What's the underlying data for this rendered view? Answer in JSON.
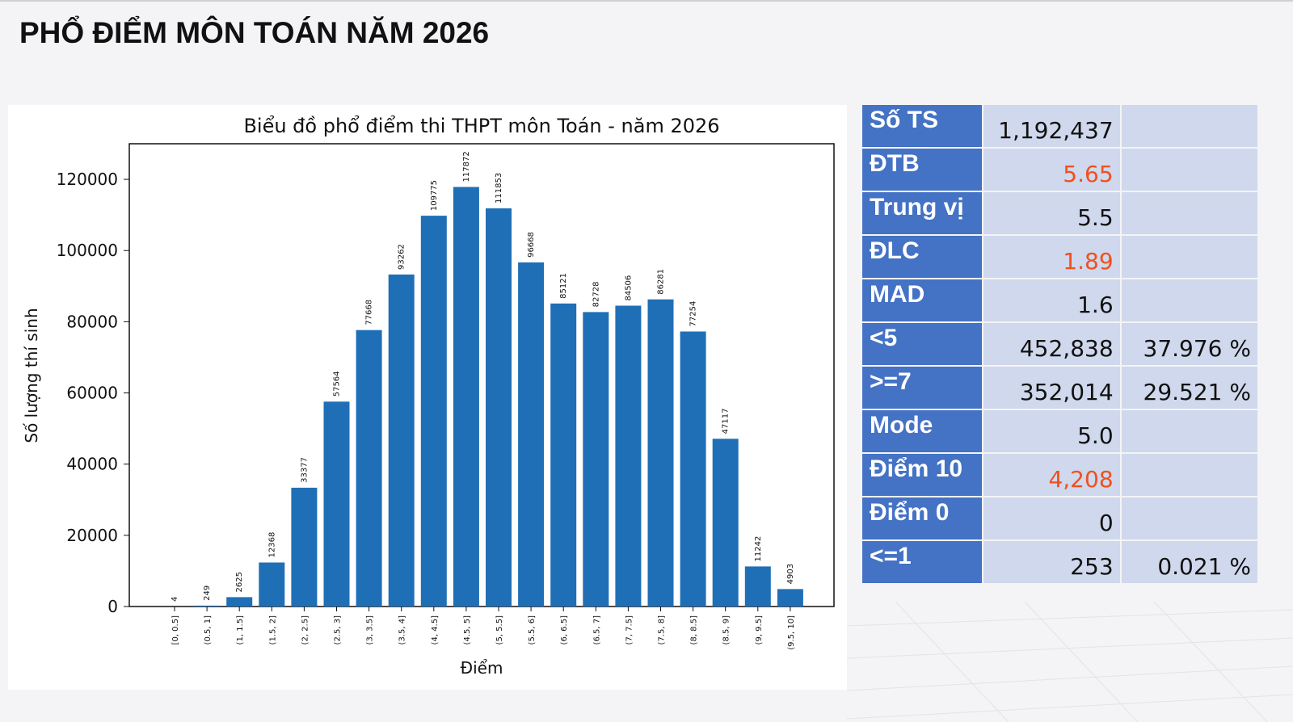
{
  "page": {
    "title": "PHỔ ĐIỂM MÔN TOÁN NĂM 2026"
  },
  "colors": {
    "bar": "#1f6fb6",
    "label_bg": "#4472c4",
    "cell_bg": "#cfd8ec",
    "highlight": "#f0501e"
  },
  "chart_data": {
    "type": "bar",
    "title": "Biểu đồ phổ điểm thi THPT môn Toán - năm 2026",
    "xlabel": "Điểm",
    "ylabel": "Số lượng thí sinh",
    "ylim": [
      0,
      130000
    ],
    "yticks": [
      0,
      20000,
      40000,
      60000,
      80000,
      100000,
      120000
    ],
    "grid": false,
    "categories": [
      "[0, 0.5]",
      "(0.5, 1]",
      "(1, 1.5]",
      "(1.5, 2]",
      "(2, 2.5]",
      "(2.5, 3]",
      "(3, 3.5]",
      "(3.5, 4]",
      "(4, 4.5]",
      "(4.5, 5]",
      "(5, 5.5]",
      "(5.5, 6]",
      "(6, 6.5]",
      "(6.5, 7]",
      "(7, 7.5]",
      "(7.5, 8]",
      "(8, 8.5]",
      "(8.5, 9]",
      "(9, 9.5]",
      "(9.5, 10]"
    ],
    "values": [
      4,
      249,
      2625,
      12368,
      33377,
      57564,
      77668,
      93262,
      109775,
      117872,
      111853,
      96668,
      85121,
      82728,
      84506,
      86281,
      77254,
      47117,
      11242,
      4903
    ]
  },
  "stats": [
    {
      "label": "Số TS",
      "value": "1,192,437",
      "pct": "",
      "highlight": false
    },
    {
      "label": "ĐTB",
      "value": "5.65",
      "pct": "",
      "highlight": true
    },
    {
      "label": "Trung vị",
      "value": "5.5",
      "pct": "",
      "highlight": false
    },
    {
      "label": "ĐLC",
      "value": "1.89",
      "pct": "",
      "highlight": true
    },
    {
      "label": "MAD",
      "value": "1.6",
      "pct": "",
      "highlight": false
    },
    {
      "label": "<5",
      "value": "452,838",
      "pct": "37.976 %",
      "highlight": false
    },
    {
      "label": ">=7",
      "value": "352,014",
      "pct": "29.521 %",
      "highlight": false
    },
    {
      "label": "Mode",
      "value": "5.0",
      "pct": "",
      "highlight": false
    },
    {
      "label": "Điểm 10",
      "value": "4,208",
      "pct": "",
      "highlight": true
    },
    {
      "label": "Điểm 0",
      "value": "0",
      "pct": "",
      "highlight": false
    },
    {
      "label": "<=1",
      "value": "253",
      "pct": "0.021 %",
      "highlight": false
    }
  ]
}
